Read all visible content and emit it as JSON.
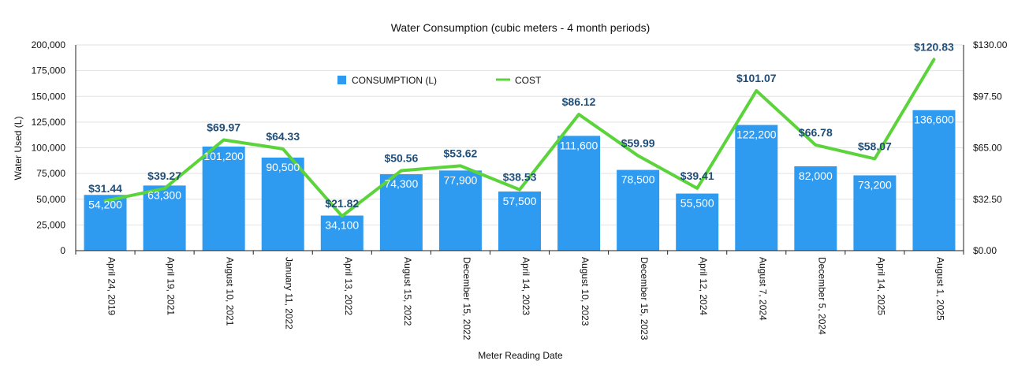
{
  "chart_data": {
    "type": "bar",
    "title": "Water Consumption (cubic meters - 4 month periods)",
    "xlabel": "Meter Reading Date",
    "ylabel": "Water Used (L)",
    "ylim": [
      0,
      200000
    ],
    "y2lim": [
      0,
      130
    ],
    "yticks": [
      "0",
      "25,000",
      "50,000",
      "75,000",
      "100,000",
      "125,000",
      "150,000",
      "175,000",
      "200,000"
    ],
    "y2ticks": [
      "$0.00",
      "$32.50",
      "$65.00",
      "$97.50",
      "$130.00"
    ],
    "categories": [
      "April 24, 2019",
      "April 19, 2021",
      "August 10, 2021",
      "January 11, 2022",
      "April 13, 2022",
      "August 15, 2022",
      "December 15, 2022",
      "April 14, 2023",
      "August 10, 2023",
      "December 15, 2023",
      "April 12, 2024",
      "August 7, 2024",
      "December 5, 2024",
      "April 14, 2025",
      "August 1, 2025"
    ],
    "legend_position": "top-left",
    "series": [
      {
        "name": "CONSUMPTION (L)",
        "type": "bar",
        "color": "#2f9bf0",
        "values": [
          54200,
          63300,
          101200,
          90500,
          34100,
          74300,
          77900,
          57500,
          111600,
          78500,
          55500,
          122200,
          82000,
          73200,
          136600
        ],
        "labels": [
          "54,200",
          "63,300",
          "101,200",
          "90,500",
          "34,100",
          "74,300",
          "77,900",
          "57,500",
          "111,600",
          "78,500",
          "55,500",
          "122,200",
          "82,000",
          "73,200",
          "136,600"
        ]
      },
      {
        "name": "COST",
        "type": "line",
        "axis": "right",
        "color": "#5bd33a",
        "values": [
          31.44,
          39.27,
          69.97,
          64.33,
          21.82,
          50.56,
          53.62,
          38.53,
          86.12,
          59.99,
          39.41,
          101.07,
          66.78,
          58.07,
          120.83
        ],
        "labels": [
          "$31.44",
          "$39.27",
          "$69.97",
          "$64.33",
          "$21.82",
          "$50.56",
          "$53.62",
          "$38.53",
          "$86.12",
          "$59.99",
          "$39.41",
          "$101.07",
          "$66.78",
          "$58.07",
          "$120.83"
        ]
      }
    ]
  }
}
